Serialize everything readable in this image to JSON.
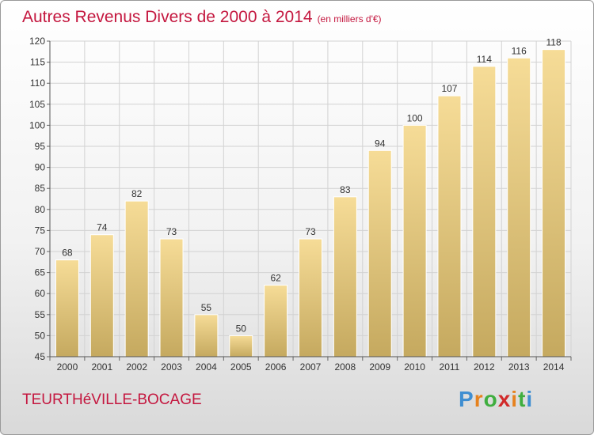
{
  "chart_data": {
    "type": "bar",
    "title": "Autres Revenus Divers de 2000 à 2014",
    "subtitle": "(en milliers d'€)",
    "categories": [
      "2000",
      "2001",
      "2002",
      "2003",
      "2004",
      "2005",
      "2006",
      "2007",
      "2008",
      "2009",
      "2010",
      "2011",
      "2012",
      "2013",
      "2014"
    ],
    "values": [
      68,
      74,
      82,
      73,
      55,
      50,
      62,
      73,
      83,
      94,
      100,
      107,
      114,
      116,
      118
    ],
    "ylim": [
      45,
      120
    ],
    "yticks": [
      45,
      50,
      55,
      60,
      65,
      70,
      75,
      80,
      85,
      90,
      95,
      100,
      105,
      110,
      115,
      120
    ],
    "grid": true,
    "bar_color": "#e9cf84",
    "data_labels": true
  },
  "footer": {
    "commune": "TEURTHéVILLE-BOCAGE",
    "logo_letters": [
      "P",
      "r",
      "o",
      "x",
      "i",
      "t",
      "i"
    ],
    "logo_colors": [
      "#3f8ed1",
      "#e6821e",
      "#3fae3f",
      "#d12a2a",
      "#e6821e",
      "#3fae3f",
      "#3f8ed1"
    ]
  }
}
